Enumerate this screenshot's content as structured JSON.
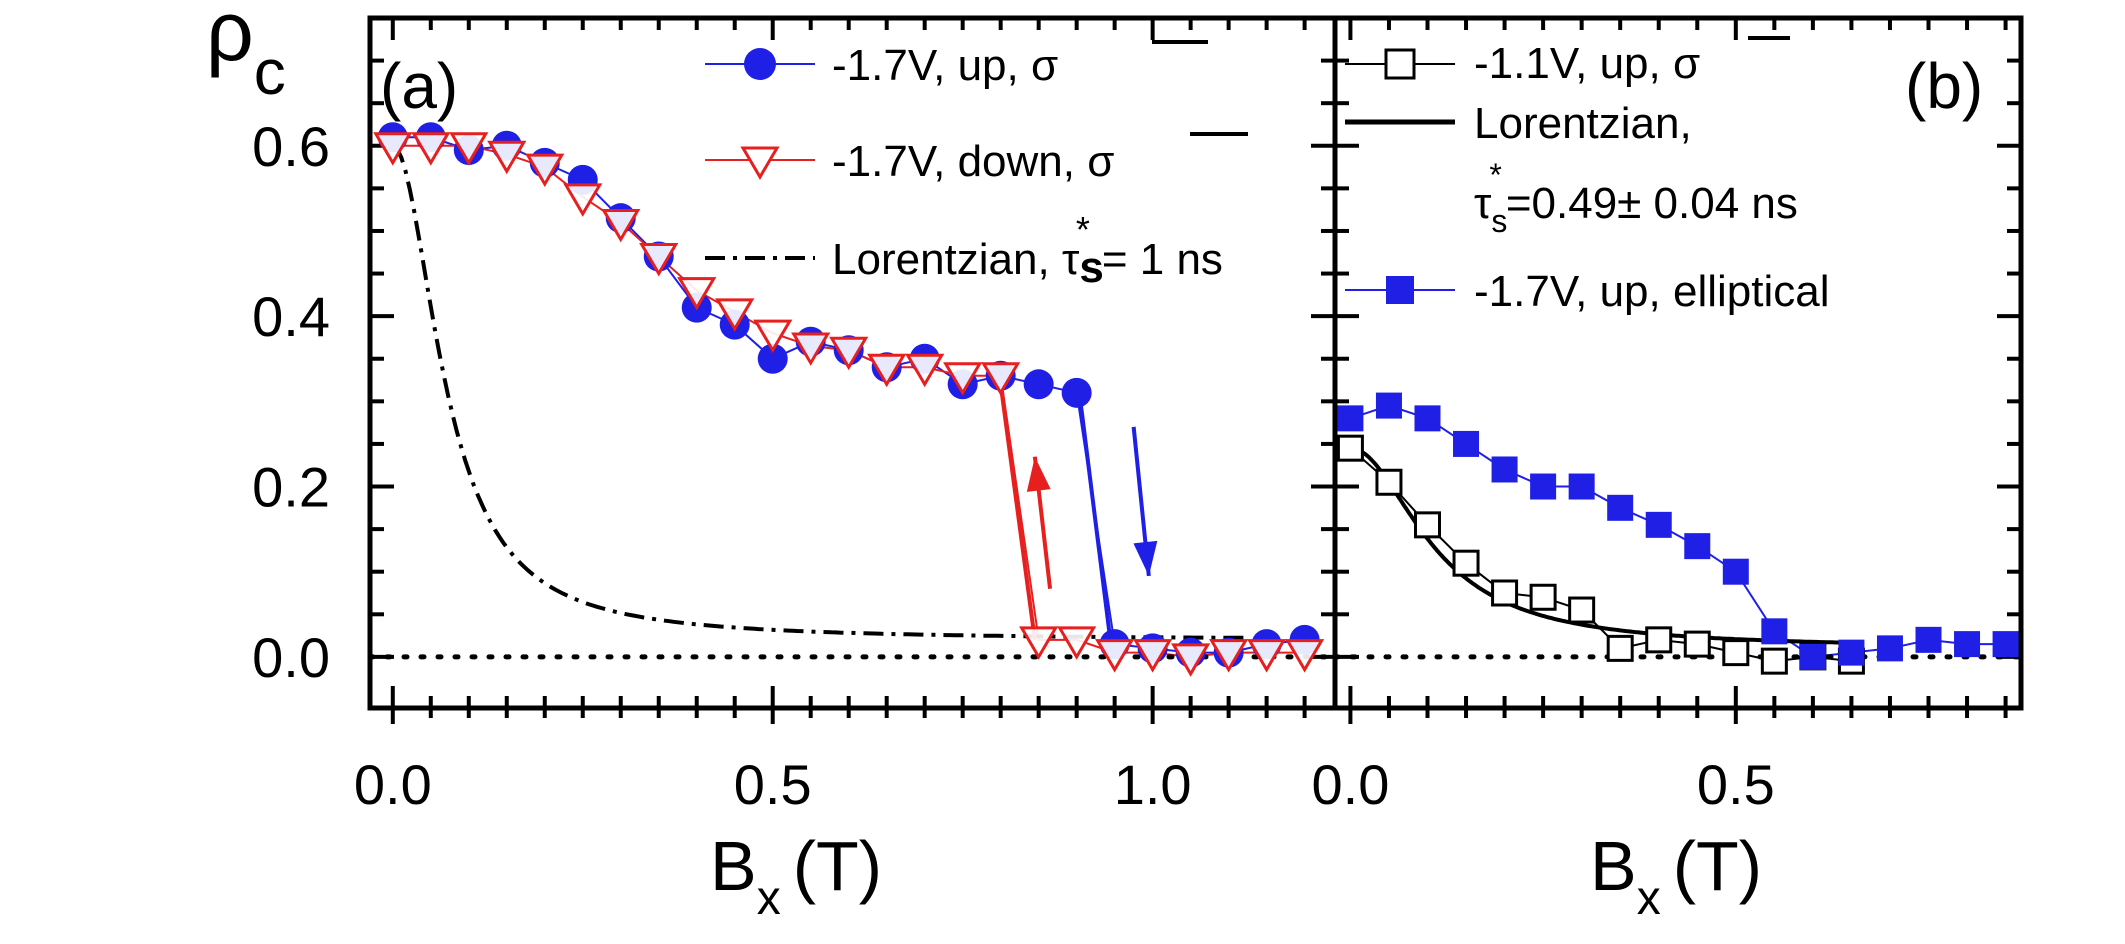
{
  "chart_data": [
    {
      "panel": "a",
      "type": "scatter",
      "title": "(a)",
      "panel_label": "(a)",
      "xlabel": "B",
      "xlabel_sub": "x",
      "xlabel_unit": "(T)",
      "ylabel": "ρ",
      "ylabel_sub": "c",
      "xlim": [
        -0.03,
        1.24
      ],
      "ylim": [
        -0.06,
        0.75
      ],
      "x_ticks": [
        0.0,
        0.5,
        1.0
      ],
      "x_tick_labels": [
        "0.0",
        "0.5",
        "1.0"
      ],
      "y_ticks": [
        0.0,
        0.2,
        0.4,
        0.6
      ],
      "y_tick_labels": [
        "0.0",
        "0.2",
        "0.4",
        "0.6"
      ],
      "legend": {
        "entries": [
          {
            "label": "-1.7V, up, σ",
            "series": "up"
          },
          {
            "label": "-1.7V, down, σ",
            "series": "down"
          },
          {
            "label": "Lorentzian, ",
            "suffix": "= 1 ns",
            "tau": "τ",
            "tau_sub": "s",
            "tau_sup": "*",
            "series": "lorentz_a"
          }
        ]
      },
      "series": [
        {
          "name": "-1.7V, up, σ",
          "id": "up",
          "color": "#1f1fe6",
          "marker": "filled-circle",
          "x": [
            0.0,
            0.05,
            0.1,
            0.15,
            0.2,
            0.25,
            0.3,
            0.35,
            0.4,
            0.45,
            0.5,
            0.55,
            0.6,
            0.65,
            0.7,
            0.75,
            0.8,
            0.85,
            0.9,
            0.95,
            1.0,
            1.05,
            1.1,
            1.15,
            1.2
          ],
          "y": [
            0.61,
            0.61,
            0.595,
            0.6,
            0.58,
            0.56,
            0.515,
            0.47,
            0.41,
            0.39,
            0.35,
            0.37,
            0.36,
            0.34,
            0.35,
            0.32,
            0.33,
            0.32,
            0.31,
            0.015,
            0.01,
            0.005,
            0.005,
            0.015,
            0.02
          ]
        },
        {
          "name": "-1.7V, down, σ",
          "id": "down",
          "color": "#e61f1f",
          "marker": "open-triangle-down",
          "x": [
            0.0,
            0.05,
            0.1,
            0.15,
            0.2,
            0.25,
            0.3,
            0.35,
            0.4,
            0.45,
            0.5,
            0.55,
            0.6,
            0.65,
            0.7,
            0.75,
            0.8,
            0.85,
            0.9,
            0.95,
            1.0,
            1.05,
            1.1,
            1.15,
            1.2
          ],
          "y": [
            0.6,
            0.6,
            0.6,
            0.59,
            0.575,
            0.54,
            0.51,
            0.47,
            0.43,
            0.405,
            0.38,
            0.365,
            0.36,
            0.34,
            0.34,
            0.33,
            0.33,
            0.02,
            0.02,
            0.005,
            0.005,
            0.0,
            0.005,
            0.005,
            0.005
          ]
        },
        {
          "name": "Lorentzian, τs* = 1 ns",
          "id": "lorentz_a",
          "color": "#000000",
          "line": "dash-dot",
          "model": {
            "A": 0.58,
            "w": 0.072,
            "c": 0.02,
            "x_from": 0.0,
            "x_to": 1.12
          }
        },
        {
          "name": "baseline",
          "id": "zero_a",
          "color": "#000000",
          "line": "dotted",
          "y_const": 0.0
        }
      ],
      "annotations": [
        {
          "type": "arrow",
          "color": "#e61f1f",
          "from": [
            0.865,
            0.08
          ],
          "to": [
            0.845,
            0.235
          ],
          "label": "up-arrow"
        },
        {
          "type": "arrow",
          "color": "#1f1fe6",
          "from": [
            0.975,
            0.27
          ],
          "to": [
            0.995,
            0.095
          ],
          "label": "down-arrow"
        },
        {
          "type": "line",
          "color": "#e61f1f",
          "from": [
            0.8,
            0.32
          ],
          "to": [
            0.845,
            0.02
          ]
        },
        {
          "type": "line",
          "color": "#1f1fe6",
          "from": [
            0.905,
            0.3
          ],
          "to": [
            0.945,
            0.015
          ]
        }
      ]
    },
    {
      "panel": "b",
      "type": "scatter",
      "title": "(b)",
      "panel_label": "(b)",
      "xlabel": "B",
      "xlabel_sub": "x",
      "xlabel_unit": "(T)",
      "xlim": [
        -0.02,
        0.87
      ],
      "ylim": [
        -0.06,
        0.75
      ],
      "x_ticks": [
        0.0,
        0.5
      ],
      "x_tick_labels": [
        "0.0",
        "0.5"
      ],
      "legend": {
        "entries": [
          {
            "label": "-1.1V, up, σ",
            "series": "b_up"
          },
          {
            "label": "Lorentzian,",
            "series": "lorentz_b"
          },
          {
            "label": "=0.49± 0.04 ns",
            "tau": "τ",
            "tau_sub": "s",
            "tau_sup": "*"
          },
          {
            "label": "-1.7V, up, elliptical",
            "series": "elliptical"
          }
        ]
      },
      "series": [
        {
          "name": "-1.1V, up, σ",
          "id": "b_up",
          "color": "#000000",
          "marker": "open-square",
          "x": [
            0.0,
            0.05,
            0.1,
            0.15,
            0.2,
            0.25,
            0.3,
            0.35,
            0.4,
            0.45,
            0.5,
            0.55,
            0.6,
            0.65
          ],
          "y": [
            0.245,
            0.205,
            0.155,
            0.11,
            0.075,
            0.07,
            0.055,
            0.01,
            0.02,
            0.015,
            0.005,
            -0.005,
            0.0,
            -0.005
          ]
        },
        {
          "name": "-1.7V, up, elliptical",
          "id": "elliptical",
          "color": "#1f1fe6",
          "marker": "filled-square",
          "x": [
            0.0,
            0.05,
            0.1,
            0.15,
            0.2,
            0.25,
            0.3,
            0.35,
            0.4,
            0.45,
            0.5,
            0.55,
            0.6,
            0.65,
            0.7,
            0.75,
            0.8,
            0.85
          ],
          "y": [
            0.28,
            0.295,
            0.28,
            0.25,
            0.22,
            0.2,
            0.2,
            0.175,
            0.155,
            0.13,
            0.1,
            0.03,
            0.0,
            0.005,
            0.01,
            0.02,
            0.015,
            0.015
          ]
        },
        {
          "name": "Lorentzian, τs* = 0.49± 0.04 ns",
          "id": "lorentz_b",
          "color": "#000000",
          "line": "solid",
          "model": {
            "A": 0.235,
            "w": 0.11,
            "c": 0.01,
            "x_from": 0.0,
            "x_to": 0.66
          }
        },
        {
          "name": "baseline",
          "id": "zero_b",
          "color": "#000000",
          "line": "dotted",
          "y_const": 0.0
        }
      ]
    }
  ]
}
